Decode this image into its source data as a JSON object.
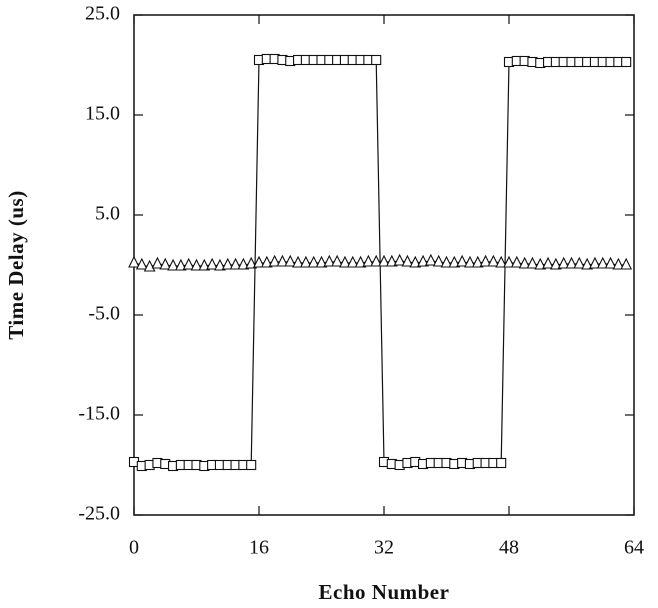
{
  "chart_data": {
    "type": "line",
    "x_label": "Echo Number",
    "y_label": "Time Delay (us)",
    "x": [
      0,
      1,
      2,
      3,
      4,
      5,
      6,
      7,
      8,
      9,
      10,
      11,
      12,
      13,
      14,
      15,
      16,
      17,
      18,
      19,
      20,
      21,
      22,
      23,
      24,
      25,
      26,
      27,
      28,
      29,
      30,
      31,
      32,
      33,
      34,
      35,
      36,
      37,
      38,
      39,
      40,
      41,
      42,
      43,
      44,
      45,
      46,
      47,
      48,
      49,
      50,
      51,
      52,
      53,
      54,
      55,
      56,
      57,
      58,
      59,
      60,
      61,
      62,
      63
    ],
    "series": [
      {
        "marker": "square",
        "color": "#111111",
        "values": [
          -19.7,
          -20.1,
          -20.0,
          -19.8,
          -19.9,
          -20.1,
          -20.0,
          -20.0,
          -20.0,
          -20.1,
          -20.0,
          -20.0,
          -20.0,
          -20.0,
          -20.0,
          -20.0,
          20.5,
          20.6,
          20.6,
          20.5,
          20.4,
          20.5,
          20.5,
          20.5,
          20.5,
          20.5,
          20.5,
          20.5,
          20.5,
          20.5,
          20.5,
          20.5,
          -19.7,
          -19.9,
          -20.0,
          -19.8,
          -19.7,
          -19.9,
          -19.8,
          -19.8,
          -19.8,
          -19.9,
          -19.8,
          -19.9,
          -19.8,
          -19.8,
          -19.8,
          -19.8,
          20.3,
          20.4,
          20.4,
          20.3,
          20.2,
          20.3,
          20.3,
          20.3,
          20.3,
          20.3,
          20.3,
          20.3,
          20.3,
          20.3,
          20.3,
          20.3
        ]
      },
      {
        "marker": "triangle",
        "color": "#111111",
        "values": [
          0.2,
          0.0,
          -0.2,
          0.1,
          0.0,
          -0.1,
          -0.1,
          0.0,
          -0.1,
          -0.1,
          0.0,
          -0.1,
          0.0,
          0.0,
          0.0,
          0.1,
          0.2,
          0.2,
          0.3,
          0.3,
          0.3,
          0.2,
          0.2,
          0.2,
          0.2,
          0.3,
          0.3,
          0.2,
          0.2,
          0.2,
          0.3,
          0.3,
          0.3,
          0.3,
          0.4,
          0.3,
          0.2,
          0.3,
          0.4,
          0.3,
          0.2,
          0.2,
          0.3,
          0.2,
          0.2,
          0.3,
          0.3,
          0.2,
          0.2,
          0.2,
          0.1,
          0.1,
          0.0,
          0.1,
          0.0,
          0.1,
          0.1,
          0.1,
          0.0,
          0.1,
          0.1,
          0.1,
          0.0,
          0.0
        ]
      }
    ],
    "xlim": [
      0,
      64
    ],
    "xticks": [
      0,
      16,
      32,
      48,
      64
    ],
    "ylim": [
      -25,
      25
    ],
    "yticks": [
      {
        "value": -25,
        "label": "-25.0"
      },
      {
        "value": -15,
        "label": "-15.0"
      },
      {
        "value": -5,
        "label": "-5.0"
      },
      {
        "value": 5,
        "label": "5.0"
      },
      {
        "value": 15,
        "label": "15.0"
      },
      {
        "value": 25,
        "label": "25.0"
      }
    ],
    "grid": false
  }
}
